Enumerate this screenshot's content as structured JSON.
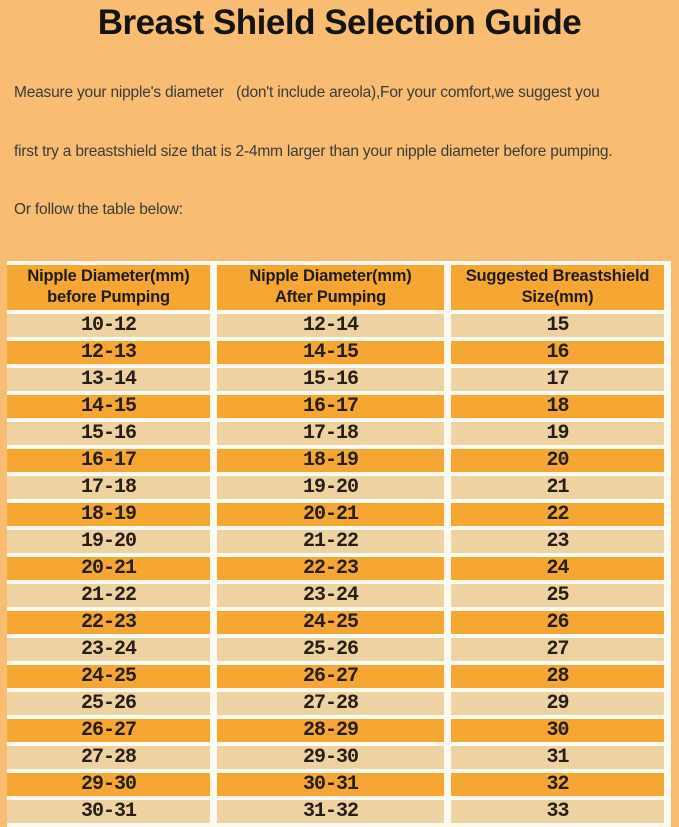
{
  "page": {
    "title": "Breast Shield Selection Guide",
    "intro_lines": [
      "Measure your nipple's diameter   (don't include areola),For your comfort,we suggest you",
      "first try a breastshield size that is 2-4mm larger than your nipple diameter before pumping.",
      "Or follow the table below:"
    ]
  },
  "table": {
    "headers": [
      {
        "line1": "Nipple Diameter(mm)",
        "line2": "before Pumping"
      },
      {
        "line1": "Nipple Diameter(mm)",
        "line2": "After Pumping"
      },
      {
        "line1": "Suggested Breastshield",
        "line2": "Size(mm)"
      }
    ],
    "rows": [
      {
        "before": "10-12",
        "after": "12-14",
        "size": "15"
      },
      {
        "before": "12-13",
        "after": "14-15",
        "size": "16"
      },
      {
        "before": "13-14",
        "after": "15-16",
        "size": "17"
      },
      {
        "before": "14-15",
        "after": "16-17",
        "size": "18"
      },
      {
        "before": "15-16",
        "after": "17-18",
        "size": "19"
      },
      {
        "before": "16-17",
        "after": "18-19",
        "size": "20"
      },
      {
        "before": "17-18",
        "after": "19-20",
        "size": "21"
      },
      {
        "before": "18-19",
        "after": "20-21",
        "size": "22"
      },
      {
        "before": "19-20",
        "after": "21-22",
        "size": "23"
      },
      {
        "before": "20-21",
        "after": "22-23",
        "size": "24"
      },
      {
        "before": "21-22",
        "after": "23-24",
        "size": "25"
      },
      {
        "before": "22-23",
        "after": "24-25",
        "size": "26"
      },
      {
        "before": "23-24",
        "after": "25-26",
        "size": "27"
      },
      {
        "before": "24-25",
        "after": "26-27",
        "size": "28"
      },
      {
        "before": "25-26",
        "after": "27-28",
        "size": "29"
      },
      {
        "before": "26-27",
        "after": "28-29",
        "size": "30"
      },
      {
        "before": "27-28",
        "after": "29-30",
        "size": "31"
      },
      {
        "before": "29-30",
        "after": "30-31",
        "size": "32"
      },
      {
        "before": "30-31",
        "after": "31-32",
        "size": "33"
      }
    ]
  },
  "colors": {
    "page_bg": "#F8BD72",
    "header_bg": "#F6A733",
    "row_orange": "#F6A733",
    "row_cream": "#EFD2A2",
    "separator": "#FDFAF2",
    "title_text": "#141414",
    "intro_text": "#3A3A3A",
    "cell_text": "#241E15"
  }
}
